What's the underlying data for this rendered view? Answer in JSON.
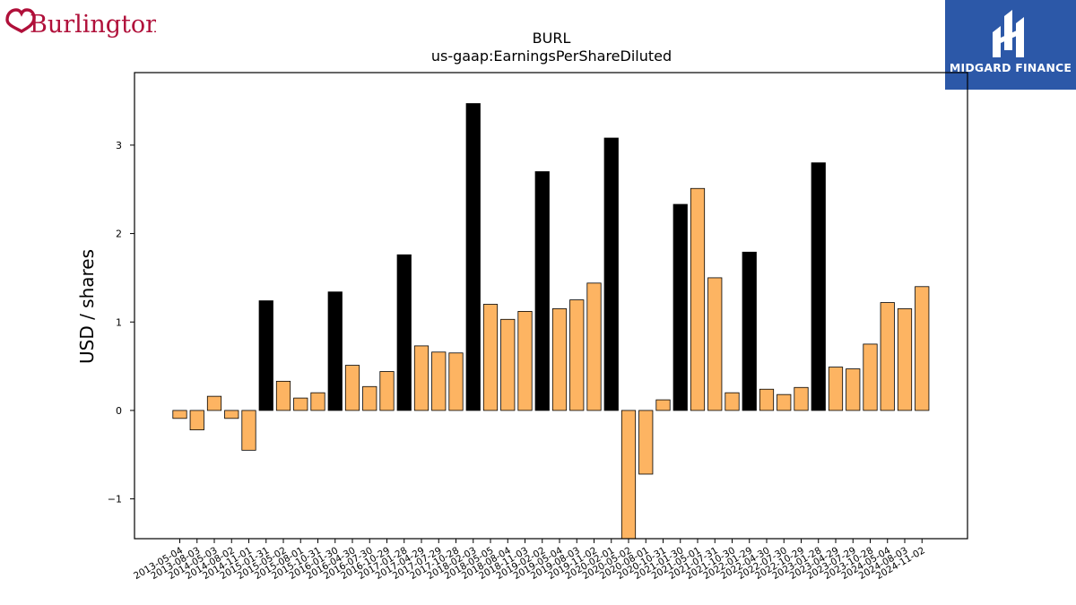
{
  "brand": {
    "logo_text": "Burlington",
    "logo_color": "#b0103a"
  },
  "partner": {
    "logo_text": "MIDGARD FINANCE",
    "bg_color": "#2c58a8"
  },
  "chart_data": {
    "type": "bar",
    "title": "BURL",
    "subtitle": "us-gaap:EarningsPerShareDiluted",
    "ylabel": "USD / shares",
    "xlabel": "",
    "ylim": [
      -1.45,
      3.82
    ],
    "yticks": [
      -1,
      0,
      1,
      2,
      3
    ],
    "ytick_labels": [
      "−1",
      "0",
      "1",
      "2",
      "3"
    ],
    "grid": false,
    "colors": {
      "quarter": "#fdb462",
      "annual": "#000000",
      "edge": "#000000"
    },
    "categories": [
      "2013-05-04",
      "2013-08-03",
      "2014-05-03",
      "2014-08-02",
      "2014-11-01",
      "2015-01-31",
      "2015-05-02",
      "2015-08-01",
      "2015-10-31",
      "2016-01-30",
      "2016-04-30",
      "2016-07-30",
      "2016-10-29",
      "2017-01-28",
      "2017-04-29",
      "2017-07-29",
      "2017-10-28",
      "2018-02-03",
      "2018-05-05",
      "2018-08-04",
      "2018-11-03",
      "2019-02-02",
      "2019-05-04",
      "2019-08-03",
      "2019-11-02",
      "2020-02-01",
      "2020-05-02",
      "2020-08-01",
      "2020-10-31",
      "2021-01-30",
      "2021-05-01",
      "2021-07-31",
      "2021-10-30",
      "2022-01-29",
      "2022-04-30",
      "2022-07-30",
      "2022-10-29",
      "2023-01-28",
      "2023-04-29",
      "2023-07-29",
      "2023-10-28",
      "2024-05-04",
      "2024-08-03",
      "2024-11-02"
    ],
    "values": [
      -0.09,
      -0.22,
      0.16,
      -0.09,
      -0.45,
      1.24,
      0.33,
      0.14,
      0.2,
      1.34,
      0.51,
      0.27,
      0.44,
      1.76,
      0.73,
      0.66,
      0.65,
      3.47,
      1.2,
      1.03,
      1.12,
      2.7,
      1.15,
      1.25,
      1.44,
      3.08,
      -1.45,
      -0.72,
      0.12,
      2.33,
      2.51,
      1.5,
      0.2,
      1.79,
      0.24,
      0.18,
      0.26,
      2.8,
      0.49,
      0.47,
      0.75,
      1.22,
      1.15,
      1.4
    ],
    "annual": [
      false,
      false,
      false,
      false,
      false,
      true,
      false,
      false,
      false,
      true,
      false,
      false,
      false,
      true,
      false,
      false,
      false,
      true,
      false,
      false,
      false,
      true,
      false,
      false,
      false,
      true,
      false,
      false,
      false,
      true,
      false,
      false,
      false,
      true,
      false,
      false,
      false,
      true,
      false,
      false,
      false,
      false,
      false,
      false
    ]
  }
}
